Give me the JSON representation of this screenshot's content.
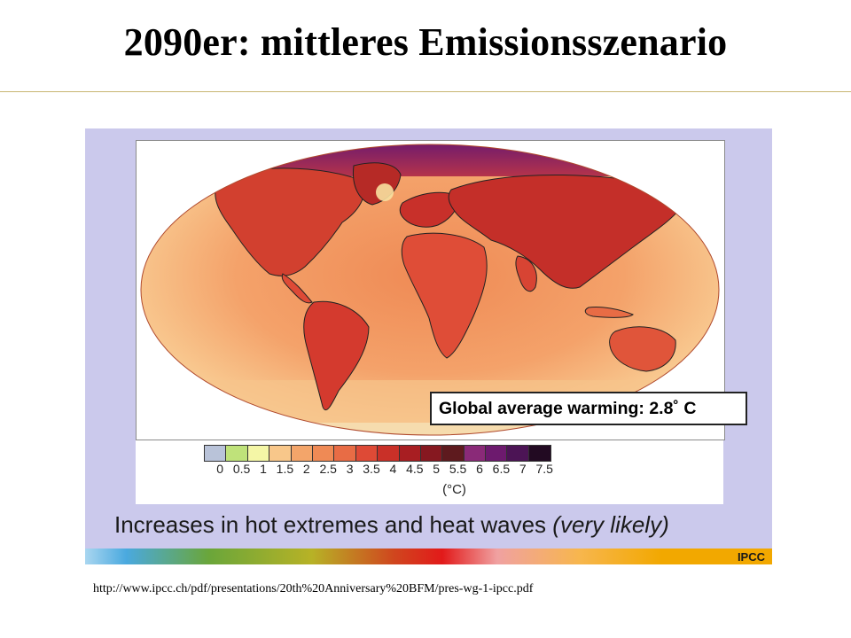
{
  "slide": {
    "title": "2090er: mittleres Emissionsszenario",
    "source_url": "http://www.ipcc.ch/pdf/presentations/20th%20Anniversary%20BFM/pres-wg-1-ipcc.pdf"
  },
  "figure": {
    "warming_label": "Global average warming: 2.8˚ C",
    "caption_main": "Increases in hot extremes and heat waves ",
    "caption_italic": "(very likely)",
    "logo_text": "IPCC",
    "legend_unit": "(°C)",
    "legend_ticks": [
      "0",
      "0.5",
      "1",
      "1.5",
      "2",
      "2.5",
      "3",
      "3.5",
      "4",
      "4.5",
      "5",
      "5.5",
      "6",
      "6.5",
      "7",
      "7.5"
    ],
    "legend_colors": [
      "#b9c3d9",
      "#bfe27a",
      "#f4f6a6",
      "#f8c78a",
      "#f3a56a",
      "#ef8a55",
      "#e86c45",
      "#de4a36",
      "#c93028",
      "#a81e22",
      "#861820",
      "#5e1a1e",
      "#8a2a78",
      "#6d1a6e",
      "#4c1455",
      "#220a22"
    ],
    "colors": {
      "ocean_warm": "#f4a26a",
      "ocean_cool": "#f8c78e",
      "land": "#e2553a",
      "arctic": "#9a3396",
      "figure_bg": "#cbc9ec"
    }
  }
}
